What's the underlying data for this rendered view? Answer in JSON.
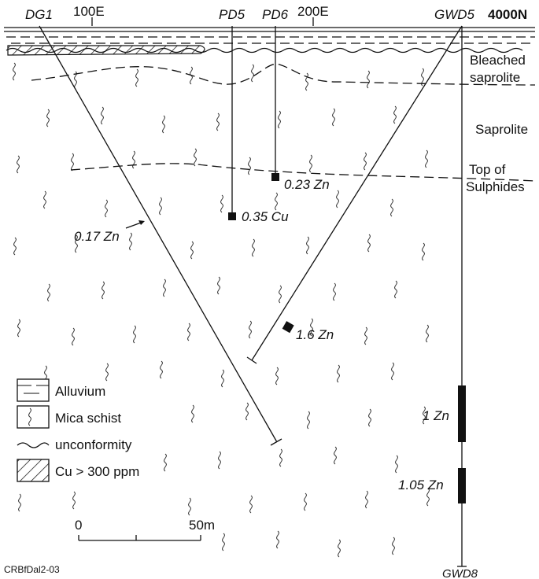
{
  "header": {
    "labels": [
      "DG1",
      "100E",
      "PD5",
      "PD6",
      "200E",
      "GWD5",
      "4000N"
    ]
  },
  "units": {
    "bleached": [
      "Bleached",
      "saprolite"
    ],
    "saprolite": "Saprolite",
    "sulphides": [
      "Top of",
      "Sulphides"
    ]
  },
  "assays": [
    "0.23 Zn",
    "0.35 Cu",
    "0.17 Zn",
    "1.6 Zn",
    "1 Zn",
    "1.05 Zn"
  ],
  "legend": [
    "Alluvium",
    "Mica schist",
    "unconformity",
    "Cu > 300 ppm"
  ],
  "scale": {
    "start": "0",
    "end": "50m"
  },
  "footer": {
    "code": "CRBfDal2-03",
    "hole": "GWD8"
  }
}
